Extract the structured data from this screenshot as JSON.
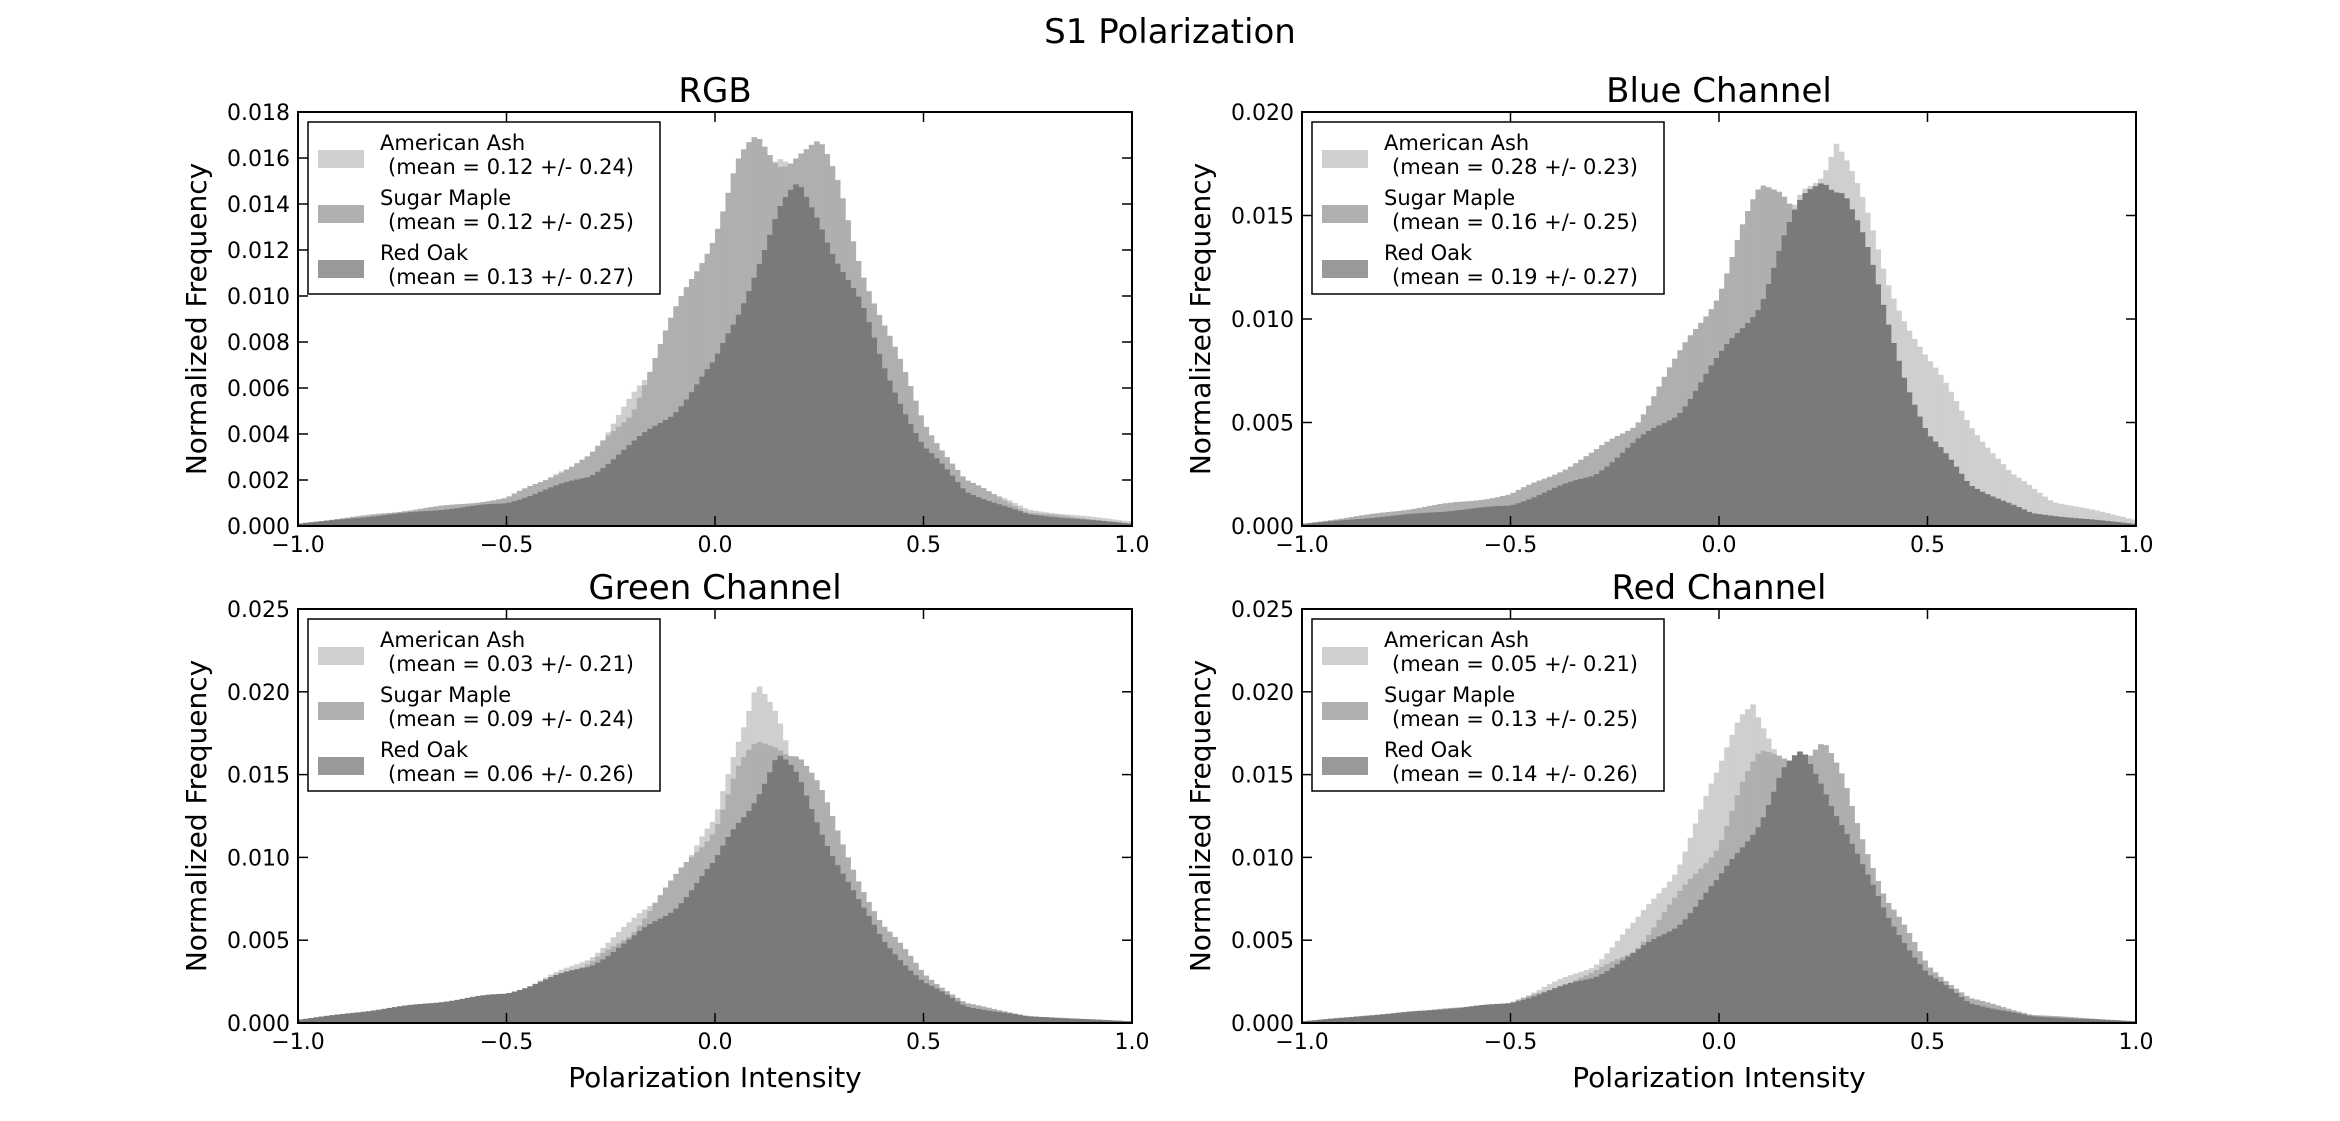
{
  "title": "S1 Polarization",
  "colors": {
    "American Ash": "#cfcfcf",
    "Sugar Maple": "#afafaf",
    "Red Oak": "#7a7a7a",
    "legend_swatch_red_oak": "#999999"
  },
  "chart_data": [
    {
      "type": "histogram",
      "title": "RGB",
      "xlabel": "",
      "ylabel": "Normalized Frequency",
      "xlim": [
        -1.0,
        1.0
      ],
      "ylim": [
        0.0,
        0.018
      ],
      "xticks": [
        "−1.0",
        "−0.5",
        "0.0",
        "0.5",
        "1.0"
      ],
      "yticks": [
        "0.000",
        "0.002",
        "0.004",
        "0.006",
        "0.008",
        "0.010",
        "0.012",
        "0.014",
        "0.016",
        "0.018"
      ],
      "legend_position": "upper-left",
      "series": [
        {
          "name": "American Ash",
          "mean_label": "(mean = 0.12 +/- 0.24)",
          "points": [
            [
              -1.0,
              0.0001
            ],
            [
              -0.5,
              0.001
            ],
            [
              -0.3,
              0.003
            ],
            [
              -0.2,
              0.0055
            ],
            [
              -0.1,
              0.008
            ],
            [
              0.0,
              0.0115
            ],
            [
              0.05,
              0.0135
            ],
            [
              0.1,
              0.015
            ],
            [
              0.15,
              0.0155
            ],
            [
              0.2,
              0.015
            ],
            [
              0.25,
              0.014
            ],
            [
              0.3,
              0.012
            ],
            [
              0.35,
              0.0095
            ],
            [
              0.4,
              0.0075
            ],
            [
              0.5,
              0.004
            ],
            [
              0.6,
              0.002
            ],
            [
              0.75,
              0.0007
            ],
            [
              1.0,
              0.0002
            ]
          ]
        },
        {
          "name": "Sugar Maple",
          "mean_label": "(mean = 0.12 +/- 0.25)",
          "points": [
            [
              -1.0,
              0.0001
            ],
            [
              -0.5,
              0.0012
            ],
            [
              -0.3,
              0.003
            ],
            [
              -0.2,
              0.005
            ],
            [
              -0.1,
              0.009
            ],
            [
              0.0,
              0.013
            ],
            [
              0.05,
              0.0155
            ],
            [
              0.1,
              0.0165
            ],
            [
              0.15,
              0.016
            ],
            [
              0.2,
              0.0165
            ],
            [
              0.25,
              0.0163
            ],
            [
              0.3,
              0.0145
            ],
            [
              0.35,
              0.0115
            ],
            [
              0.4,
              0.009
            ],
            [
              0.5,
              0.0045
            ],
            [
              0.6,
              0.002
            ],
            [
              0.75,
              0.0006
            ],
            [
              1.0,
              0.0001
            ]
          ]
        },
        {
          "name": "Red Oak",
          "mean_label": "(mean = 0.13 +/- 0.27)",
          "points": [
            [
              -1.0,
              0.0001
            ],
            [
              -0.5,
              0.001
            ],
            [
              -0.3,
              0.0022
            ],
            [
              -0.2,
              0.0035
            ],
            [
              -0.1,
              0.005
            ],
            [
              0.0,
              0.007
            ],
            [
              0.05,
              0.009
            ],
            [
              0.1,
              0.0115
            ],
            [
              0.15,
              0.0135
            ],
            [
              0.2,
              0.0145
            ],
            [
              0.25,
              0.0135
            ],
            [
              0.3,
              0.0115
            ],
            [
              0.35,
              0.0095
            ],
            [
              0.4,
              0.007
            ],
            [
              0.5,
              0.0035
            ],
            [
              0.6,
              0.0015
            ],
            [
              0.75,
              0.0005
            ],
            [
              1.0,
              0.0001
            ]
          ]
        }
      ]
    },
    {
      "type": "histogram",
      "title": "Blue Channel",
      "xlabel": "",
      "ylabel": "Normalized Frequency",
      "xlim": [
        -1.0,
        1.0
      ],
      "ylim": [
        0.0,
        0.02
      ],
      "xticks": [
        "−1.0",
        "−0.5",
        "0.0",
        "0.5",
        "1.0"
      ],
      "yticks": [
        "0.000",
        "0.005",
        "0.010",
        "0.015",
        "0.020"
      ],
      "legend_position": "upper-left",
      "series": [
        {
          "name": "American Ash",
          "mean_label": "(mean = 0.28 +/- 0.23)",
          "points": [
            [
              -1.0,
              0.0001
            ],
            [
              -0.5,
              0.0008
            ],
            [
              -0.3,
              0.002
            ],
            [
              -0.2,
              0.003
            ],
            [
              -0.1,
              0.0045
            ],
            [
              0.0,
              0.007
            ],
            [
              0.1,
              0.011
            ],
            [
              0.2,
              0.016
            ],
            [
              0.25,
              0.0175
            ],
            [
              0.28,
              0.019
            ],
            [
              0.3,
              0.018
            ],
            [
              0.35,
              0.015
            ],
            [
              0.4,
              0.012
            ],
            [
              0.5,
              0.008
            ],
            [
              0.6,
              0.005
            ],
            [
              0.7,
              0.0025
            ],
            [
              0.8,
              0.0012
            ],
            [
              1.0,
              0.0003
            ]
          ]
        },
        {
          "name": "Sugar Maple",
          "mean_label": "(mean = 0.16 +/- 0.25)",
          "points": [
            [
              -1.0,
              0.0001
            ],
            [
              -0.5,
              0.0015
            ],
            [
              -0.3,
              0.0035
            ],
            [
              -0.2,
              0.005
            ],
            [
              -0.1,
              0.008
            ],
            [
              0.0,
              0.0115
            ],
            [
              0.05,
              0.014
            ],
            [
              0.1,
              0.016
            ],
            [
              0.15,
              0.0165
            ],
            [
              0.2,
              0.0155
            ],
            [
              0.25,
              0.014
            ],
            [
              0.3,
              0.0115
            ],
            [
              0.35,
              0.0085
            ],
            [
              0.4,
              0.006
            ],
            [
              0.5,
              0.003
            ],
            [
              0.6,
              0.0012
            ],
            [
              0.75,
              0.0004
            ],
            [
              1.0,
              0.0001
            ]
          ]
        },
        {
          "name": "Red Oak",
          "mean_label": "(mean = 0.19 +/- 0.27)",
          "points": [
            [
              -1.0,
              0.0001
            ],
            [
              -0.5,
              0.001
            ],
            [
              -0.3,
              0.0025
            ],
            [
              -0.2,
              0.004
            ],
            [
              -0.1,
              0.0055
            ],
            [
              0.0,
              0.008
            ],
            [
              0.1,
              0.011
            ],
            [
              0.15,
              0.0135
            ],
            [
              0.2,
              0.0155
            ],
            [
              0.25,
              0.017
            ],
            [
              0.3,
              0.0165
            ],
            [
              0.35,
              0.0135
            ],
            [
              0.4,
              0.01
            ],
            [
              0.45,
              0.007
            ],
            [
              0.5,
              0.0045
            ],
            [
              0.6,
              0.002
            ],
            [
              0.75,
              0.0006
            ],
            [
              1.0,
              0.0001
            ]
          ]
        }
      ]
    },
    {
      "type": "histogram",
      "title": "Green Channel",
      "xlabel": "Polarization Intensity",
      "ylabel": "Normalized Frequency",
      "xlim": [
        -1.0,
        1.0
      ],
      "ylim": [
        0.0,
        0.025
      ],
      "xticks": [
        "−1.0",
        "−0.5",
        "0.0",
        "0.5",
        "1.0"
      ],
      "yticks": [
        "0.000",
        "0.005",
        "0.010",
        "0.015",
        "0.020",
        "0.025"
      ],
      "legend_position": "upper-left",
      "series": [
        {
          "name": "American Ash",
          "mean_label": "(mean = 0.03 +/- 0.21)",
          "points": [
            [
              -1.0,
              0.0002
            ],
            [
              -0.5,
              0.0015
            ],
            [
              -0.3,
              0.004
            ],
            [
              -0.2,
              0.006
            ],
            [
              -0.1,
              0.0085
            ],
            [
              0.0,
              0.012
            ],
            [
              0.05,
              0.017
            ],
            [
              0.1,
              0.021
            ],
            [
              0.15,
              0.018
            ],
            [
              0.2,
              0.014
            ],
            [
              0.25,
              0.011
            ],
            [
              0.3,
              0.0085
            ],
            [
              0.4,
              0.005
            ],
            [
              0.5,
              0.0025
            ],
            [
              0.6,
              0.0012
            ],
            [
              0.75,
              0.0004
            ],
            [
              1.0,
              0.0001
            ]
          ]
        },
        {
          "name": "Sugar Maple",
          "mean_label": "(mean = 0.09 +/- 0.24)",
          "points": [
            [
              -1.0,
              0.0001
            ],
            [
              -0.5,
              0.0015
            ],
            [
              -0.3,
              0.0035
            ],
            [
              -0.2,
              0.0055
            ],
            [
              -0.1,
              0.0085
            ],
            [
              0.0,
              0.012
            ],
            [
              0.05,
              0.015
            ],
            [
              0.1,
              0.0165
            ],
            [
              0.15,
              0.017
            ],
            [
              0.2,
              0.0165
            ],
            [
              0.25,
              0.014
            ],
            [
              0.3,
              0.011
            ],
            [
              0.35,
              0.0085
            ],
            [
              0.4,
              0.006
            ],
            [
              0.5,
              0.003
            ],
            [
              0.6,
              0.0012
            ],
            [
              0.75,
              0.0004
            ],
            [
              1.0,
              0.0001
            ]
          ]
        },
        {
          "name": "Red Oak",
          "mean_label": "(mean = 0.06 +/- 0.26)",
          "points": [
            [
              -1.0,
              0.0002
            ],
            [
              -0.5,
              0.0018
            ],
            [
              -0.3,
              0.0035
            ],
            [
              -0.2,
              0.005
            ],
            [
              -0.1,
              0.007
            ],
            [
              0.0,
              0.0095
            ],
            [
              0.05,
              0.012
            ],
            [
              0.1,
              0.014
            ],
            [
              0.15,
              0.016
            ],
            [
              0.2,
              0.0145
            ],
            [
              0.25,
              0.012
            ],
            [
              0.3,
              0.0095
            ],
            [
              0.35,
              0.007
            ],
            [
              0.4,
              0.005
            ],
            [
              0.5,
              0.0025
            ],
            [
              0.6,
              0.001
            ],
            [
              0.75,
              0.0004
            ],
            [
              1.0,
              0.0001
            ]
          ]
        }
      ]
    },
    {
      "type": "histogram",
      "title": "Red Channel",
      "xlabel": "Polarization Intensity",
      "ylabel": "Normalized Frequency",
      "xlim": [
        -1.0,
        1.0
      ],
      "ylim": [
        0.0,
        0.025
      ],
      "xticks": [
        "−1.0",
        "−0.5",
        "0.0",
        "0.5",
        "1.0"
      ],
      "yticks": [
        "0.000",
        "0.005",
        "0.010",
        "0.015",
        "0.020",
        "0.025"
      ],
      "legend_position": "upper-left",
      "series": [
        {
          "name": "American Ash",
          "mean_label": "(mean = 0.05 +/- 0.21)",
          "points": [
            [
              -1.0,
              0.0001
            ],
            [
              -0.5,
              0.0012
            ],
            [
              -0.3,
              0.0035
            ],
            [
              -0.2,
              0.006
            ],
            [
              -0.1,
              0.0095
            ],
            [
              0.0,
              0.015
            ],
            [
              0.05,
              0.019
            ],
            [
              0.08,
              0.02
            ],
            [
              0.1,
              0.0185
            ],
            [
              0.15,
              0.015
            ],
            [
              0.2,
              0.011
            ],
            [
              0.25,
              0.008
            ],
            [
              0.3,
              0.006
            ],
            [
              0.4,
              0.0035
            ],
            [
              0.5,
              0.0018
            ],
            [
              0.6,
              0.0008
            ],
            [
              0.75,
              0.0003
            ],
            [
              1.0,
              0.0001
            ]
          ]
        },
        {
          "name": "Sugar Maple",
          "mean_label": "(mean = 0.13 +/- 0.25)",
          "points": [
            [
              -1.0,
              0.0001
            ],
            [
              -0.5,
              0.0012
            ],
            [
              -0.3,
              0.003
            ],
            [
              -0.2,
              0.0045
            ],
            [
              -0.1,
              0.0075
            ],
            [
              0.0,
              0.011
            ],
            [
              0.05,
              0.014
            ],
            [
              0.1,
              0.016
            ],
            [
              0.15,
              0.0165
            ],
            [
              0.2,
              0.016
            ],
            [
              0.25,
              0.0165
            ],
            [
              0.3,
              0.0145
            ],
            [
              0.35,
              0.011
            ],
            [
              0.4,
              0.0075
            ],
            [
              0.5,
              0.0035
            ],
            [
              0.6,
              0.0015
            ],
            [
              0.75,
              0.0005
            ],
            [
              1.0,
              0.0001
            ]
          ]
        },
        {
          "name": "Red Oak",
          "mean_label": "(mean = 0.14 +/- 0.26)",
          "points": [
            [
              -1.0,
              0.0001
            ],
            [
              -0.5,
              0.0012
            ],
            [
              -0.3,
              0.0028
            ],
            [
              -0.2,
              0.0042
            ],
            [
              -0.1,
              0.006
            ],
            [
              0.0,
              0.0085
            ],
            [
              0.05,
              0.0105
            ],
            [
              0.1,
              0.0125
            ],
            [
              0.15,
              0.015
            ],
            [
              0.2,
              0.016
            ],
            [
              0.25,
              0.0145
            ],
            [
              0.3,
              0.012
            ],
            [
              0.35,
              0.009
            ],
            [
              0.4,
              0.0065
            ],
            [
              0.5,
              0.003
            ],
            [
              0.6,
              0.0012
            ],
            [
              0.75,
              0.0004
            ],
            [
              1.0,
              0.0001
            ]
          ]
        }
      ]
    }
  ]
}
